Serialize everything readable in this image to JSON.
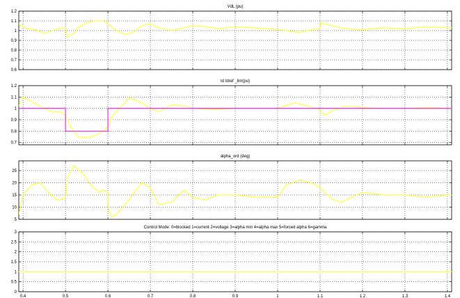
{
  "chart_data": [
    {
      "type": "line",
      "title": "VdL (pu)",
      "xlim": [
        0.39,
        1.41
      ],
      "ylim": [
        0.6,
        1.2
      ],
      "yticks": [
        "0.6",
        "0.7",
        "0.8",
        "0.9",
        "1",
        "1.1",
        "1.2"
      ],
      "grid": true,
      "series": [
        {
          "color": "#ffff44",
          "x": [
            0.39,
            0.41,
            0.43,
            0.45,
            0.47,
            0.49,
            0.5,
            0.505,
            0.51,
            0.52,
            0.53,
            0.55,
            0.57,
            0.59,
            0.6,
            0.62,
            0.64,
            0.66,
            0.68,
            0.7,
            0.72,
            0.75,
            0.78,
            0.8,
            0.83,
            0.86,
            0.9,
            0.94,
            0.98,
            1.02,
            1.05,
            1.08,
            1.1,
            1.102,
            1.11,
            1.13,
            1.16,
            1.2,
            1.25,
            1.3,
            1.35,
            1.4,
            1.41
          ],
          "y": [
            1.07,
            1.02,
            1.01,
            0.97,
            1.0,
            1.03,
            1.02,
            0.93,
            0.95,
            0.97,
            1.03,
            1.08,
            1.1,
            1.1,
            1.07,
            1.0,
            0.96,
            0.98,
            1.05,
            1.07,
            1.03,
            1.0,
            1.03,
            1.05,
            1.04,
            1.02,
            1.04,
            1.03,
            1.02,
            1.0,
            0.98,
            1.01,
            1.02,
            1.08,
            1.07,
            1.05,
            1.02,
            1.01,
            1.03,
            1.02,
            1.04,
            1.03,
            1.03
          ]
        }
      ]
    },
    {
      "type": "line",
      "title": "Id Idref _lim(pu)",
      "xlim": [
        0.39,
        1.41
      ],
      "ylim": [
        0.68,
        1.2
      ],
      "yticks": [
        "0.7",
        "0.8",
        "0.9",
        "1",
        "1.1",
        "1.2"
      ],
      "grid": true,
      "series": [
        {
          "color": "#ffff44",
          "x": [
            0.39,
            0.4,
            0.42,
            0.45,
            0.47,
            0.49,
            0.5,
            0.51,
            0.53,
            0.55,
            0.57,
            0.59,
            0.6,
            0.61,
            0.63,
            0.65,
            0.68,
            0.7,
            0.72,
            0.75,
            0.78,
            0.8,
            0.85,
            0.9,
            0.95,
            1.0,
            1.04,
            1.07,
            1.1,
            1.11,
            1.13,
            1.16,
            1.2,
            1.25,
            1.3,
            1.35,
            1.41
          ],
          "y": [
            1.02,
            1.1,
            1.06,
            1.0,
            0.97,
            0.97,
            0.94,
            0.85,
            0.75,
            0.74,
            0.76,
            0.8,
            0.84,
            0.93,
            1.01,
            1.09,
            1.05,
            1.0,
            0.97,
            1.03,
            1.02,
            1.0,
            0.99,
            1.0,
            1.0,
            1.0,
            1.05,
            1.02,
            0.99,
            0.94,
            0.98,
            1.02,
            1.01,
            1.0,
            1.0,
            1.01,
            1.0
          ]
        },
        {
          "color": "#ff33ff",
          "x": [
            0.39,
            0.5,
            0.5,
            0.6,
            0.6,
            1.41
          ],
          "y": [
            1.0,
            1.0,
            0.8,
            0.8,
            1.0,
            1.0
          ]
        }
      ]
    },
    {
      "type": "line",
      "title": "alpha_ord (deg)",
      "xlim": [
        0.39,
        1.41
      ],
      "ylim": [
        5,
        29
      ],
      "yticks": [
        "5",
        "10",
        "15",
        "20",
        "25"
      ],
      "grid": true,
      "series": [
        {
          "color": "#ffff44",
          "x": [
            0.39,
            0.4,
            0.42,
            0.44,
            0.46,
            0.48,
            0.49,
            0.5,
            0.505,
            0.52,
            0.54,
            0.56,
            0.58,
            0.59,
            0.6,
            0.602,
            0.61,
            0.62,
            0.65,
            0.68,
            0.7,
            0.72,
            0.75,
            0.78,
            0.8,
            0.83,
            0.86,
            0.9,
            0.95,
            1.0,
            1.02,
            1.05,
            1.08,
            1.1,
            1.13,
            1.15,
            1.2,
            1.25,
            1.3,
            1.35,
            1.4,
            1.41
          ],
          "y": [
            7,
            15,
            19,
            20,
            16,
            13,
            13,
            14,
            22,
            27,
            24,
            19,
            16,
            17,
            16,
            8,
            6,
            7,
            13,
            20,
            18,
            11,
            12,
            17,
            14,
            13,
            15,
            15,
            14,
            14,
            19,
            21,
            20,
            18,
            13,
            12,
            16,
            15,
            15,
            14,
            15,
            15
          ]
        }
      ]
    },
    {
      "type": "line",
      "title": "Control Mode:  0=blocked  1=current 2=voltage 3=alpha min  4=alpha max 5=forced alpha 6=gamma",
      "xlim": [
        0.39,
        1.41
      ],
      "ylim": [
        0,
        3
      ],
      "yticks": [
        "0",
        "0.5",
        "1",
        "1.5",
        "2",
        "2.5",
        "3"
      ],
      "xticks": [
        "0.4",
        "0.5",
        "0.6",
        "0.7",
        "0.8",
        "0.9",
        "1",
        "1.1",
        "1.2",
        "1.3",
        "1.4"
      ],
      "grid": true,
      "series": [
        {
          "color": "#ffff44",
          "x": [
            0.39,
            1.41
          ],
          "y": [
            1,
            1
          ]
        }
      ]
    }
  ]
}
